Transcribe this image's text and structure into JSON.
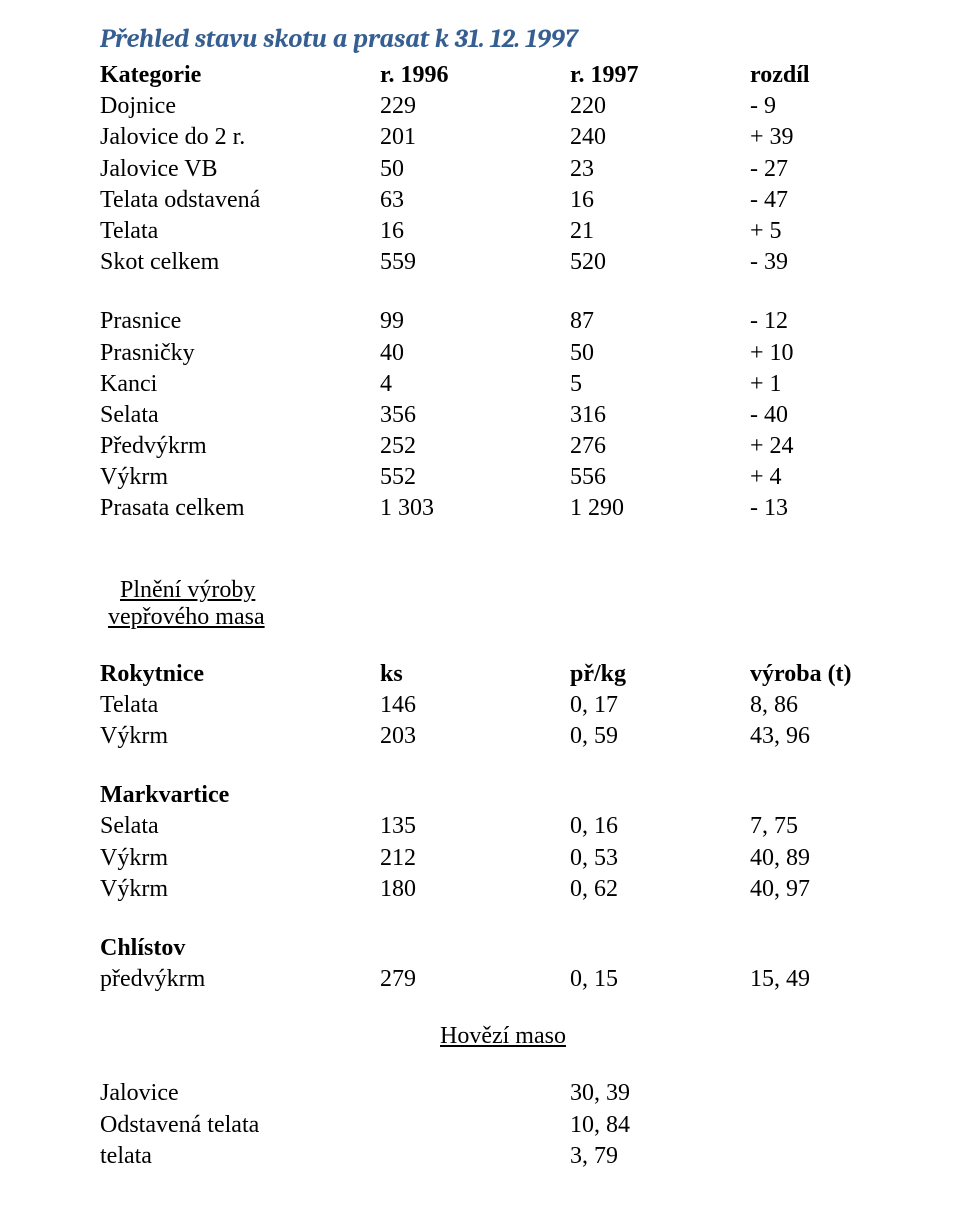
{
  "title": "Přehled stavu skotu a prasat k 31. 12. 1997",
  "headers": {
    "kat": "Kategorie",
    "r1996": "r. 1996",
    "r1997": "r. 1997",
    "diff": "rozdíl"
  },
  "block1": [
    {
      "label": "Dojnice",
      "a": "229",
      "b": "220",
      "c": "- 9"
    },
    {
      "label": "Jalovice do 2 r.",
      "a": "201",
      "b": "240",
      "c": "+ 39"
    },
    {
      "label": "Jalovice VB",
      "a": "50",
      "b": "23",
      "c": "- 27"
    },
    {
      "label": "Telata odstavená",
      "a": "63",
      "b": "16",
      "c": "- 47"
    },
    {
      "label": "Telata",
      "a": "16",
      "b": "21",
      "c": "+ 5"
    },
    {
      "label": "Skot celkem",
      "a": "559",
      "b": "520",
      "c": "- 39"
    }
  ],
  "block2": [
    {
      "label": "Prasnice",
      "a": "99",
      "b": "87",
      "c": "- 12"
    },
    {
      "label": "Prasničky",
      "a": "40",
      "b": "50",
      "c": "+ 10"
    },
    {
      "label": "Kanci",
      "a": "4",
      "b": "5",
      "c": "+ 1"
    },
    {
      "label": "Selata",
      "a": "356",
      "b": "316",
      "c": "- 40"
    },
    {
      "label": "Předvýkrm",
      "a": "252",
      "b": "276",
      "c": "+ 24"
    },
    {
      "label": "Výkrm",
      "a": "552",
      "b": "556",
      "c": "+ 4"
    },
    {
      "label": "Prasata celkem",
      "a": "1 303",
      "b": "1 290",
      "c": "- 13"
    }
  ],
  "section2": {
    "sub_line1": "Plnění výroby",
    "sub_line2": "vepřového masa",
    "hdr": {
      "place": "Rokytnice",
      "ks": "ks",
      "pr": "př/kg",
      "vy": "výroba (t)"
    },
    "rokytnice": [
      {
        "label": "Telata",
        "a": "146",
        "b": "0, 17",
        "c": "8, 86"
      },
      {
        "label": "Výkrm",
        "a": "203",
        "b": "0, 59",
        "c": "43, 96"
      }
    ],
    "markvartice_label": "Markvartice",
    "markvartice": [
      {
        "label": "Selata",
        "a": "135",
        "b": "0, 16",
        "c": "7, 75"
      },
      {
        "label": "Výkrm",
        "a": "212",
        "b": "0, 53",
        "c": "40, 89"
      },
      {
        "label": "Výkrm",
        "a": "180",
        "b": "0, 62",
        "c": "40, 97"
      }
    ],
    "chlistov_label": "Chlístov",
    "chlistov": [
      {
        "label": "předvýkrm",
        "a": "279",
        "b": "0, 15",
        "c": "15, 49"
      }
    ]
  },
  "beef": {
    "title": "Hovězí maso",
    "rows": [
      {
        "label": "Jalovice",
        "val": "30, 39"
      },
      {
        "label": "Odstavená telata",
        "val": "10, 84"
      },
      {
        "label": "telata",
        "val": "3, 79"
      }
    ]
  }
}
